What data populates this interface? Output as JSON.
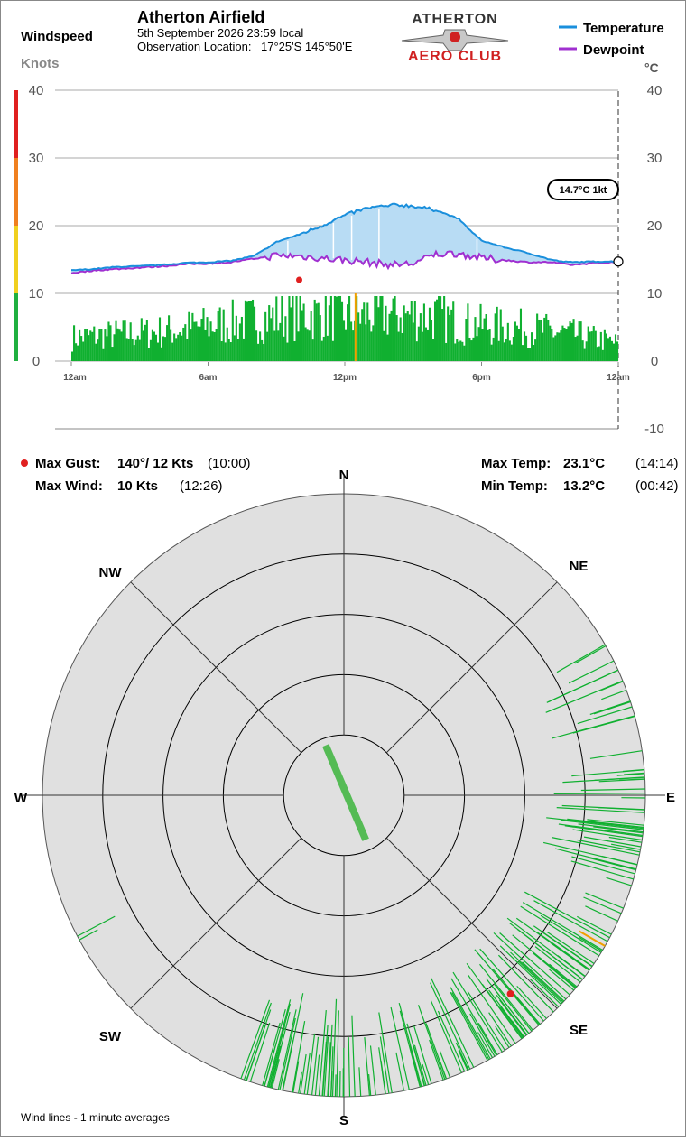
{
  "header": {
    "windspeed_label": "Windspeed",
    "knots_label": "Knots",
    "station_name": "Atherton Airfield",
    "datetime": "5th September 2026  23:59 local",
    "location_label": "Observation Location:",
    "location_value": "17°25'S 145°50'E",
    "logo_top": "ATHERTON",
    "logo_bottom": "AERO CLUB",
    "celsius_label": "°C"
  },
  "legend": {
    "temperature": {
      "label": "Temperature",
      "color": "#1a8fdc"
    },
    "dewpoint": {
      "label": "Dewpoint",
      "color": "#a030d0"
    }
  },
  "current_readout": "14.7°C  1kt",
  "stats": {
    "max_gust_label": "Max Gust:",
    "max_gust_value": "140°/  12 Kts",
    "max_gust_time": "(10:00)",
    "max_wind_label": "Max Wind:",
    "max_wind_value": "10 Kts",
    "max_wind_time": "(12:26)",
    "max_temp_label": "Max Temp:",
    "max_temp_value": "23.1°C",
    "max_temp_time": "(14:14)",
    "min_temp_label": "Min Temp:",
    "min_temp_value": "13.2°C",
    "min_temp_time": "(00:42)"
  },
  "compass": {
    "N": "N",
    "NE": "NE",
    "E": "E",
    "SE": "SE",
    "S": "S",
    "SW": "SW",
    "W": "W",
    "NW": "NW"
  },
  "footer_note": "Wind lines - 1 minute averages",
  "colors": {
    "wind_bar": "#10b030",
    "max_wind_bar": "#f0a000",
    "gust_dot": "#e02020",
    "temp_fill": "#b8dcf4",
    "compass_bg": "#e0e0e0",
    "avg_wind_vector": "#55bb55",
    "scale_red": "#e02020",
    "scale_orange": "#f08020",
    "scale_yellow": "#f0d020",
    "scale_green": "#20b040"
  },
  "chart_data": [
    {
      "type": "line",
      "x_ticks": [
        "12am",
        "6am",
        "12pm",
        "6pm",
        "12am"
      ],
      "x_tick_hours": [
        0,
        6,
        12,
        18,
        24
      ],
      "y_ticks_left": [
        "40",
        "30",
        "20",
        "10",
        "0"
      ],
      "y_ticks_right": [
        "40",
        "30",
        "20",
        "10",
        "0",
        "-10"
      ],
      "wind_ylim": [
        0,
        40
      ],
      "temp_ylim": [
        -10,
        40
      ],
      "series": [
        {
          "name": "Temperature",
          "x_hours": [
            0,
            1,
            2,
            3,
            4,
            5,
            6,
            7,
            8,
            8.5,
            9,
            10,
            11,
            11.5,
            12,
            12.5,
            13,
            13.5,
            14,
            14.2,
            15,
            16,
            17,
            17.5,
            18,
            19,
            20,
            21,
            21.5,
            22,
            23,
            24
          ],
          "values": [
            13.4,
            13.6,
            13.9,
            14.0,
            14.2,
            14.5,
            14.6,
            14.8,
            15.5,
            16.5,
            17.6,
            18.7,
            20.0,
            20.8,
            21.5,
            22.1,
            22.6,
            22.8,
            22.9,
            23.1,
            22.9,
            22.3,
            21.0,
            19.3,
            17.8,
            16.8,
            16.0,
            15.0,
            14.7,
            14.6,
            14.7,
            14.7
          ]
        },
        {
          "name": "Dewpoint",
          "x_hours": [
            0,
            1,
            2,
            3,
            4,
            5,
            6,
            7,
            8,
            9,
            10,
            11,
            12,
            13,
            14,
            15,
            16,
            17,
            18,
            19,
            20,
            21,
            22,
            23,
            24
          ],
          "values": [
            13.0,
            13.4,
            13.6,
            13.8,
            14.0,
            14.3,
            14.4,
            14.6,
            15.1,
            15.6,
            15.5,
            15.2,
            14.9,
            14.6,
            14.2,
            14.4,
            15.8,
            15.9,
            15.2,
            14.9,
            14.6,
            14.6,
            14.2,
            14.5,
            14.6
          ]
        }
      ],
      "wind_speed_profile": {
        "x_hours": [
          0,
          2,
          4,
          6,
          8,
          10,
          12,
          14,
          16,
          17,
          18,
          20,
          22,
          24
        ],
        "values": [
          4,
          4.5,
          5,
          6,
          7,
          8,
          7.5,
          8,
          7.5,
          6.5,
          6,
          5.5,
          4.5,
          3
        ]
      },
      "max_gust": {
        "hour": 10.0,
        "value": 12
      },
      "max_wind": {
        "hour": 12.43,
        "value": 10
      },
      "current_hour": 24,
      "current_temp": 14.7
    },
    {
      "type": "scatter",
      "description_free": true,
      "rings_kts": [
        2,
        4,
        6,
        8,
        10
      ],
      "wind_lines": {
        "direction_ranges_deg": [
          [
            60,
            85
          ],
          [
            85,
            200
          ],
          [
            235,
            245
          ]
        ],
        "speed_range_kts": [
          2,
          10
        ]
      },
      "max_wind_line": {
        "direction_deg": 120,
        "speed_kts": 10
      },
      "max_gust_point": {
        "direction_deg": 140,
        "speed_kts": 12
      },
      "average_vector": {
        "direction_deg": 157,
        "speed_kts": 4
      }
    }
  ]
}
